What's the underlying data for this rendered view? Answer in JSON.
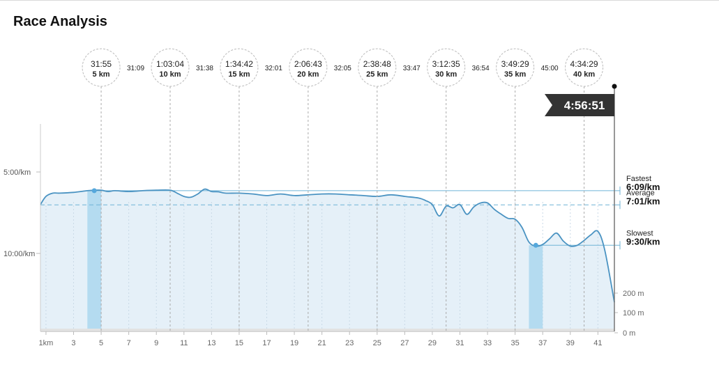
{
  "page": {
    "title": "Race Analysis"
  },
  "finish": {
    "time": "4:56:51"
  },
  "colors": {
    "line": "#4a93c2",
    "fill": "#e5f0f8",
    "highlight": "#b4dbf0",
    "reference": "#6fb3d6",
    "marker_dot": "#55a8dc",
    "flag": "#333333",
    "grid": "#cccccc",
    "elevation": "#e2e2e2"
  },
  "chart_data": {
    "type": "line",
    "title": "Race Analysis",
    "xlabel": "",
    "ylabel": "",
    "x_unit": "km",
    "xlim": [
      0.6,
      42.195
    ],
    "y_axis": {
      "label_values_min_per_km": [
        5,
        10
      ],
      "labels": [
        "5:00/km",
        "10:00/km"
      ],
      "ylim_min_per_km": [
        3.0,
        15.0
      ],
      "inverted": true
    },
    "x_ticks": [
      {
        "v": 1,
        "label": "1km"
      },
      {
        "v": 3,
        "label": "3"
      },
      {
        "v": 5,
        "label": "5"
      },
      {
        "v": 7,
        "label": "7"
      },
      {
        "v": 9,
        "label": "9"
      },
      {
        "v": 11,
        "label": "11"
      },
      {
        "v": 13,
        "label": "13"
      },
      {
        "v": 15,
        "label": "15"
      },
      {
        "v": 17,
        "label": "17"
      },
      {
        "v": 19,
        "label": "19"
      },
      {
        "v": 21,
        "label": "21"
      },
      {
        "v": 23,
        "label": "23"
      },
      {
        "v": 25,
        "label": "25"
      },
      {
        "v": 27,
        "label": "27"
      },
      {
        "v": 29,
        "label": "29"
      },
      {
        "v": 31,
        "label": "31"
      },
      {
        "v": 33,
        "label": "33"
      },
      {
        "v": 35,
        "label": "35"
      },
      {
        "v": 37,
        "label": "37"
      },
      {
        "v": 39,
        "label": "39"
      },
      {
        "v": 41,
        "label": "41"
      }
    ],
    "pace_series": {
      "name": "",
      "x": [
        0.6,
        1.0,
        1.5,
        2.0,
        3.0,
        4.0,
        4.5,
        5.0,
        5.5,
        6.0,
        7.0,
        8.0,
        9.0,
        10.0,
        10.5,
        11.0,
        11.5,
        12.0,
        12.5,
        13.0,
        13.5,
        14.0,
        15.0,
        16.0,
        17.0,
        18.0,
        19.0,
        20.0,
        21.0,
        22.0,
        23.0,
        24.0,
        25.0,
        26.0,
        27.0,
        28.0,
        28.5,
        29.0,
        29.5,
        30.0,
        30.5,
        31.0,
        31.5,
        32.0,
        32.5,
        33.0,
        33.5,
        34.0,
        34.5,
        35.0,
        35.5,
        36.0,
        36.5,
        37.0,
        37.5,
        38.0,
        38.5,
        39.0,
        39.5,
        40.0,
        40.5,
        41.0,
        41.5,
        42.195
      ],
      "pace_min_per_km": [
        7.0,
        6.5,
        6.3,
        6.3,
        6.25,
        6.15,
        6.12,
        6.12,
        6.2,
        6.15,
        6.2,
        6.15,
        6.12,
        6.12,
        6.3,
        6.5,
        6.55,
        6.35,
        6.05,
        6.2,
        6.22,
        6.3,
        6.3,
        6.35,
        6.45,
        6.35,
        6.45,
        6.4,
        6.35,
        6.35,
        6.4,
        6.45,
        6.5,
        6.4,
        6.5,
        6.6,
        6.75,
        7.0,
        7.7,
        7.1,
        7.2,
        7.0,
        7.6,
        7.15,
        6.9,
        6.9,
        7.3,
        7.6,
        7.85,
        7.9,
        8.4,
        9.3,
        9.55,
        9.45,
        9.1,
        8.75,
        9.25,
        9.55,
        9.5,
        9.2,
        8.85,
        8.65,
        9.8,
        13.0
      ]
    },
    "elevation_axis": {
      "labels": [
        "200 m",
        "100 m",
        "0 m"
      ],
      "values_m": [
        200,
        100,
        0
      ]
    },
    "reference_lines": [
      {
        "name": "Fastest",
        "label": "Fastest",
        "value": "6:09/km",
        "pace_min_per_km": 6.15,
        "style": "solid",
        "at_km": 4.5
      },
      {
        "name": "Average",
        "label": "Average",
        "value": "7:01/km",
        "pace_min_per_km": 7.02,
        "style": "dashed"
      },
      {
        "name": "Slowest",
        "label": "Slowest",
        "value": "9:30/km",
        "pace_min_per_km": 9.5,
        "style": "solid",
        "at_km": 36.5
      }
    ],
    "highlight_ranges_km": [
      [
        4.0,
        5.0
      ],
      [
        36.0,
        37.0
      ]
    ],
    "checkpoints": [
      {
        "km": 5,
        "time": "31:55",
        "dist": "5 km"
      },
      {
        "km": 10,
        "time": "1:03:04",
        "dist": "10 km"
      },
      {
        "km": 15,
        "time": "1:34:42",
        "dist": "15 km"
      },
      {
        "km": 20,
        "time": "2:06:43",
        "dist": "20 km"
      },
      {
        "km": 25,
        "time": "2:38:48",
        "dist": "25 km"
      },
      {
        "km": 30,
        "time": "3:12:35",
        "dist": "30 km"
      },
      {
        "km": 35,
        "time": "3:49:29",
        "dist": "35 km"
      },
      {
        "km": 40,
        "time": "4:34:29",
        "dist": "40 km"
      }
    ],
    "splits": [
      {
        "between_km": [
          5,
          10
        ],
        "time": "31:09"
      },
      {
        "between_km": [
          10,
          15
        ],
        "time": "31:38"
      },
      {
        "between_km": [
          15,
          20
        ],
        "time": "32:01"
      },
      {
        "between_km": [
          20,
          25
        ],
        "time": "32:05"
      },
      {
        "between_km": [
          25,
          30
        ],
        "time": "33:47"
      },
      {
        "between_km": [
          30,
          35
        ],
        "time": "36:54"
      },
      {
        "between_km": [
          35,
          40
        ],
        "time": "45:00"
      }
    ]
  }
}
